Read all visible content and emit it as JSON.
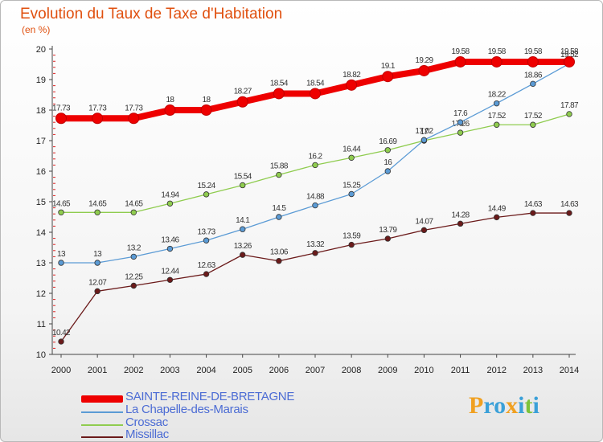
{
  "chart_data": {
    "type": "line",
    "title": "Evolution du Taux de Taxe d'Habitation",
    "ylabel": "(en %)",
    "xlabel": "",
    "x": [
      "2000",
      "2001",
      "2002",
      "2003",
      "2004",
      "2005",
      "2006",
      "2007",
      "2008",
      "2009",
      "2010",
      "2011",
      "2012",
      "2013",
      "2014"
    ],
    "ylim": [
      10,
      20
    ],
    "yticks": [
      10,
      11,
      12,
      13,
      14,
      15,
      16,
      17,
      18,
      19,
      20
    ],
    "grid": false,
    "series": [
      {
        "name": "SAINTE-REINE-DE-BRETAGNE",
        "color": "#ee0000",
        "values": [
          17.73,
          17.73,
          17.73,
          18,
          18,
          18.27,
          18.54,
          18.54,
          18.82,
          19.1,
          19.29,
          19.58,
          19.58,
          19.58,
          19.58
        ],
        "labels": [
          "17.73",
          "17.73",
          "17.73",
          "18",
          "18",
          "18.27",
          "18.54",
          "18.54",
          "18.82",
          "19.1",
          "19.29",
          "19.58",
          "19.58",
          "19.58",
          "19.58"
        ]
      },
      {
        "name": "La Chapelle-des-Marais",
        "color": "#5b9bd5",
        "values": [
          13,
          13,
          13.2,
          13.46,
          13.73,
          14.1,
          14.5,
          14.88,
          15.25,
          16,
          17.02,
          17.6,
          18.22,
          18.86,
          19.52
        ],
        "labels": [
          "13",
          "13",
          "13.2",
          "13.46",
          "13.73",
          "14.1",
          "14.5",
          "14.88",
          "15.25",
          "16",
          "17.02",
          "17.6",
          "18.22",
          "18.86",
          "19.52"
        ]
      },
      {
        "name": "Crossac",
        "color": "#8fcc4f",
        "values": [
          14.65,
          14.65,
          14.65,
          14.94,
          15.24,
          15.54,
          15.88,
          16.2,
          16.44,
          16.69,
          17,
          17.26,
          17.52,
          17.52,
          17.87
        ],
        "labels": [
          "14.65",
          "14.65",
          "14.65",
          "14.94",
          "15.24",
          "15.54",
          "15.88",
          "16.2",
          "16.44",
          "16.69",
          "17",
          "17.26",
          "17.52",
          "17.52",
          "17.87"
        ]
      },
      {
        "name": "Missillac",
        "color": "#6b1a1a",
        "values": [
          10.42,
          12.07,
          12.25,
          12.44,
          12.63,
          13.26,
          13.06,
          13.32,
          13.59,
          13.79,
          14.07,
          14.28,
          14.49,
          14.63,
          14.63
        ],
        "labels": [
          "10.42",
          "12.07",
          "12.25",
          "12.44",
          "12.63",
          "13.26",
          "13.06",
          "13.32",
          "13.59",
          "13.79",
          "14.07",
          "14.28",
          "14.49",
          "14.63",
          "14.63"
        ]
      }
    ]
  },
  "logo": {
    "text": "Proxiti",
    "letters": [
      "P",
      "r",
      "o",
      "x",
      "i",
      "t",
      "i"
    ]
  }
}
